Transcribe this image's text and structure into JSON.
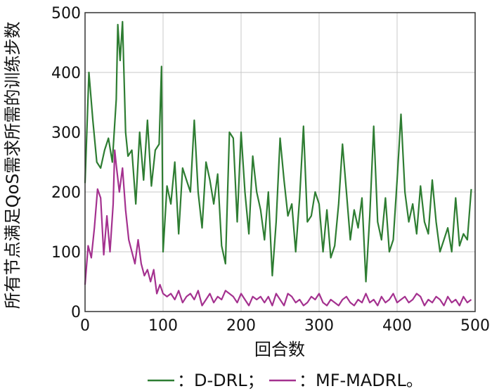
{
  "chart_data": {
    "type": "line",
    "title": "",
    "xlabel": "回合数",
    "ylabel": "所有节点满足QoS需求所需的训练步数",
    "xlim": [
      0,
      500
    ],
    "ylim": [
      0,
      500
    ],
    "xticks": [
      "0",
      "100",
      "200",
      "300",
      "400",
      "500"
    ],
    "yticks": [
      "0",
      "100",
      "200",
      "300",
      "400",
      "500"
    ],
    "grid": true,
    "legend": {
      "placement": "bottom"
    },
    "series": [
      {
        "name": "D-DRL",
        "legend_label": "：D-DRL；",
        "color": "#2e7d32",
        "x": [
          0,
          5,
          10,
          15,
          20,
          25,
          30,
          35,
          40,
          42,
          45,
          48,
          52,
          55,
          60,
          65,
          70,
          75,
          80,
          85,
          90,
          95,
          98,
          100,
          105,
          110,
          115,
          120,
          125,
          130,
          135,
          140,
          145,
          150,
          155,
          160,
          165,
          170,
          175,
          180,
          185,
          190,
          195,
          200,
          205,
          210,
          215,
          220,
          225,
          230,
          235,
          240,
          245,
          250,
          255,
          260,
          265,
          270,
          275,
          280,
          285,
          290,
          295,
          300,
          305,
          310,
          315,
          320,
          325,
          330,
          335,
          340,
          345,
          350,
          355,
          360,
          365,
          370,
          375,
          380,
          385,
          390,
          395,
          400,
          405,
          410,
          415,
          420,
          425,
          430,
          435,
          440,
          445,
          450,
          455,
          460,
          465,
          470,
          475,
          480,
          485,
          490,
          495
        ],
        "y": [
          215,
          400,
          320,
          250,
          240,
          270,
          290,
          250,
          355,
          480,
          420,
          485,
          300,
          260,
          270,
          180,
          300,
          220,
          320,
          210,
          270,
          280,
          410,
          100,
          210,
          180,
          250,
          130,
          240,
          220,
          200,
          320,
          200,
          140,
          250,
          220,
          180,
          230,
          110,
          80,
          300,
          290,
          150,
          300,
          200,
          130,
          260,
          200,
          170,
          120,
          200,
          60,
          150,
          290,
          220,
          160,
          180,
          100,
          190,
          310,
          150,
          160,
          200,
          180,
          100,
          170,
          90,
          110,
          180,
          280,
          200,
          120,
          170,
          140,
          190,
          50,
          160,
          310,
          150,
          120,
          190,
          100,
          120,
          220,
          330,
          200,
          150,
          180,
          130,
          210,
          150,
          130,
          220,
          150,
          100,
          120,
          140,
          100,
          190,
          110,
          130,
          120,
          205
        ]
      },
      {
        "name": "MF-MADRL",
        "legend_label": "：MF-MADRL。",
        "color": "#a4318f",
        "x": [
          0,
          4,
          8,
          12,
          16,
          20,
          24,
          28,
          32,
          36,
          38,
          40,
          44,
          48,
          52,
          56,
          60,
          64,
          68,
          72,
          76,
          80,
          84,
          88,
          92,
          96,
          100,
          105,
          110,
          115,
          120,
          125,
          130,
          135,
          140,
          145,
          150,
          155,
          160,
          165,
          170,
          175,
          180,
          185,
          190,
          195,
          200,
          205,
          210,
          215,
          220,
          225,
          230,
          235,
          240,
          245,
          250,
          255,
          260,
          265,
          270,
          275,
          280,
          285,
          290,
          295,
          300,
          305,
          310,
          315,
          320,
          325,
          330,
          335,
          340,
          345,
          350,
          355,
          360,
          365,
          370,
          375,
          380,
          385,
          390,
          395,
          400,
          405,
          410,
          415,
          420,
          425,
          430,
          435,
          440,
          445,
          450,
          455,
          460,
          465,
          470,
          475,
          480,
          485,
          490,
          495
        ],
        "y": [
          45,
          110,
          90,
          140,
          205,
          190,
          95,
          160,
          100,
          180,
          270,
          245,
          200,
          240,
          170,
          120,
          100,
          80,
          120,
          80,
          60,
          70,
          50,
          70,
          30,
          45,
          30,
          25,
          30,
          20,
          35,
          15,
          25,
          30,
          20,
          35,
          10,
          20,
          30,
          15,
          25,
          20,
          35,
          30,
          25,
          15,
          30,
          20,
          10,
          25,
          20,
          25,
          15,
          25,
          10,
          30,
          20,
          10,
          30,
          25,
          15,
          20,
          10,
          15,
          25,
          20,
          30,
          15,
          10,
          20,
          15,
          10,
          20,
          25,
          15,
          10,
          20,
          15,
          30,
          15,
          20,
          10,
          25,
          15,
          20,
          30,
          15,
          20,
          25,
          15,
          20,
          30,
          25,
          10,
          20,
          15,
          25,
          20,
          10,
          25,
          15,
          20,
          10,
          25,
          15,
          20
        ]
      }
    ]
  }
}
